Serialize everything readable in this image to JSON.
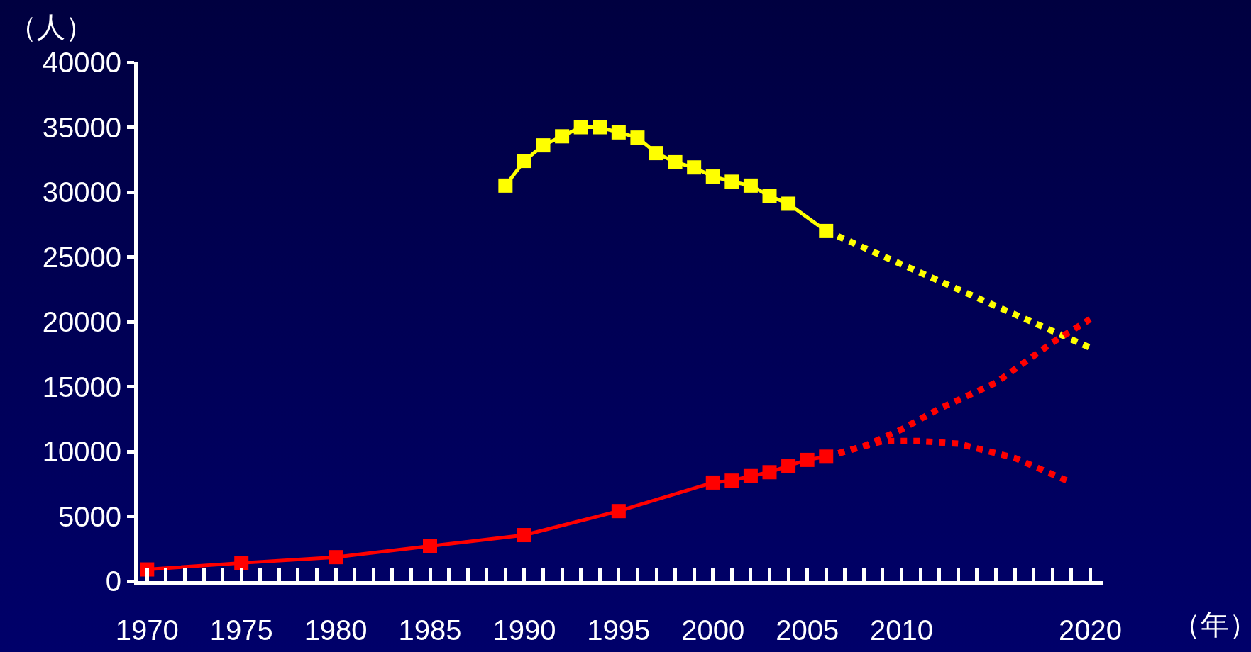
{
  "chart_data": {
    "type": "line",
    "xlabel": "（年）",
    "ylabel": "（人）",
    "xlim": [
      1969.5,
      2020.7
    ],
    "ylim": [
      0,
      40000
    ],
    "xticks": [
      1970,
      1975,
      1980,
      1985,
      1990,
      1995,
      2000,
      2005,
      2010,
      2020
    ],
    "yticks": [
      0,
      5000,
      10000,
      15000,
      20000,
      25000,
      30000,
      35000,
      40000
    ],
    "grid": false,
    "series": [
      {
        "color": "#ffff00",
        "marker": "square",
        "line_style": "solid",
        "x": [
          1989,
          1990,
          1991,
          1992,
          1993,
          1994,
          1995,
          1996,
          1997,
          1998,
          1999,
          2000,
          2001,
          2002,
          2003,
          2004,
          2006
        ],
        "values": [
          30500,
          32400,
          33600,
          34300,
          35000,
          35000,
          34600,
          34200,
          33000,
          32300,
          31900,
          31200,
          30800,
          30500,
          29700,
          29100,
          27000
        ]
      },
      {
        "color": "#ffff00",
        "marker": "none",
        "line_style": "dotted",
        "x": [
          2006,
          2020
        ],
        "values": [
          27000,
          18000
        ]
      },
      {
        "color": "#ff0000",
        "marker": "square",
        "line_style": "solid",
        "x": [
          1970,
          1975,
          1980,
          1985,
          1990,
          1995,
          2000,
          2001,
          2002,
          2003,
          2004,
          2005,
          2006
        ],
        "values": [
          900,
          1400,
          1850,
          2700,
          3550,
          5400,
          7600,
          7750,
          8100,
          8400,
          8900,
          9350,
          9600
        ]
      },
      {
        "color": "#ff0000",
        "marker": "none",
        "line_style": "dotted",
        "x": [
          2006,
          2008,
          2010,
          2012,
          2015,
          2018,
          2020
        ],
        "values": [
          9600,
          10400,
          11700,
          13300,
          15300,
          18400,
          20200
        ]
      },
      {
        "color": "#ff0000",
        "marker": "none",
        "line_style": "dotted",
        "x": [
          2006,
          2009,
          2011,
          2013,
          2016,
          2019
        ],
        "values": [
          9600,
          10800,
          10800,
          10600,
          9500,
          7600
        ]
      }
    ]
  }
}
